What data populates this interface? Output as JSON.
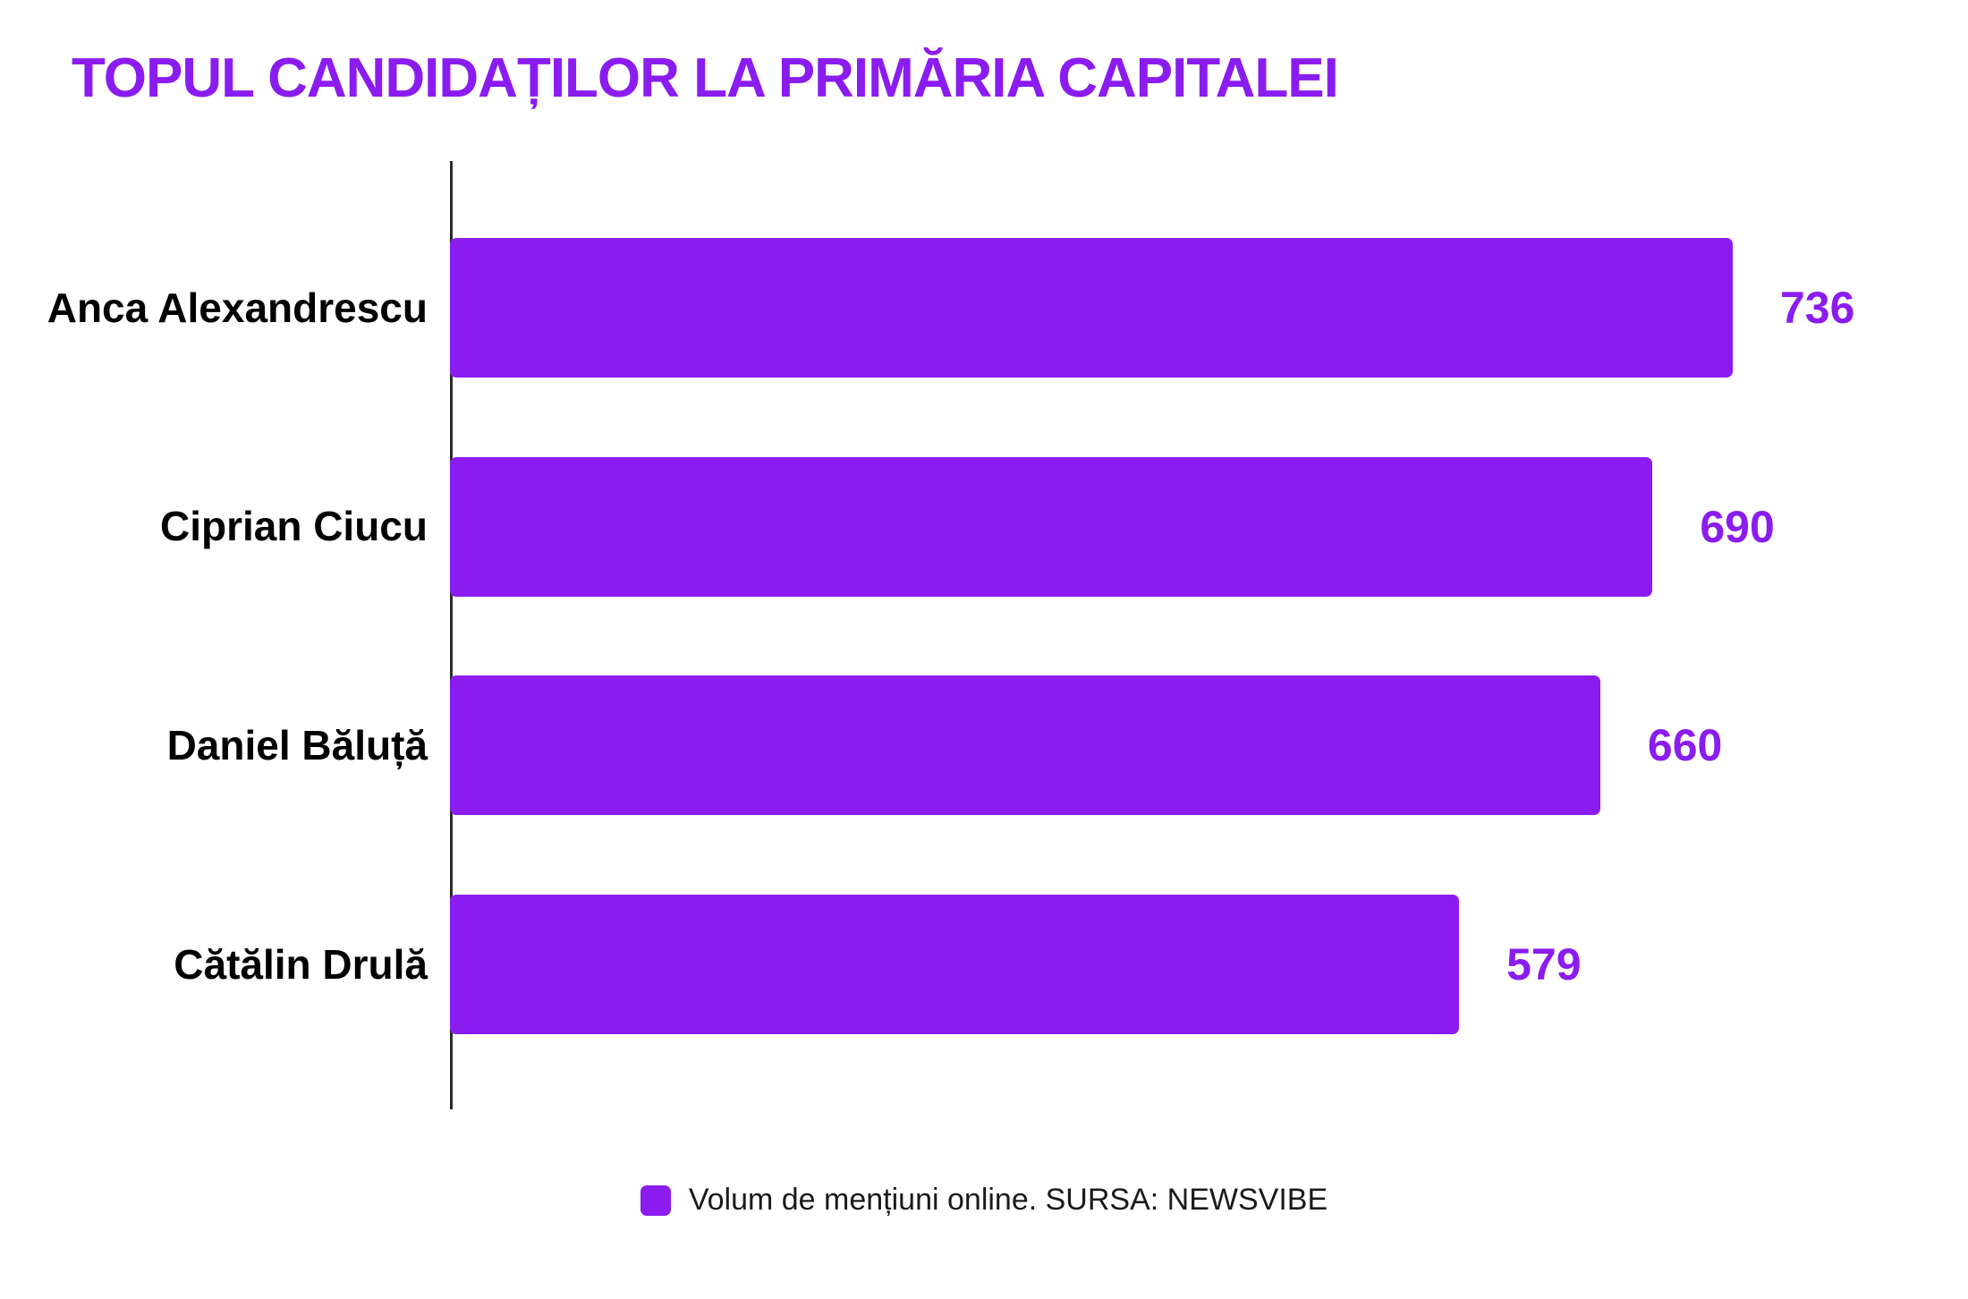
{
  "title": "TOPUL CANDIDAȚILOR LA PRIMĂRIA CAPITALEI",
  "colors": {
    "accent": "#8B1CF0",
    "axis": "#2A2A2A",
    "category_text": "#000000",
    "background": "#FFFFFF"
  },
  "legend": {
    "label": "Volum de mențiuni online. SURSA: NEWSVIBE"
  },
  "chart_data": {
    "type": "bar",
    "orientation": "horizontal",
    "title": "TOPUL CANDIDAȚILOR LA PRIMĂRIA CAPITALEI",
    "categories": [
      "Anca Alexandrescu",
      "Ciprian Ciucu",
      "Daniel Băluță",
      "Cătălin Drulă"
    ],
    "values": [
      736,
      690,
      660,
      579
    ],
    "series_name": "Volum de mențiuni online",
    "source": "SURSA: NEWSVIBE",
    "xlabel": "",
    "ylabel": "",
    "xlim": [
      0,
      760
    ],
    "grid": false,
    "value_labels": true,
    "legend_position": "bottom"
  }
}
